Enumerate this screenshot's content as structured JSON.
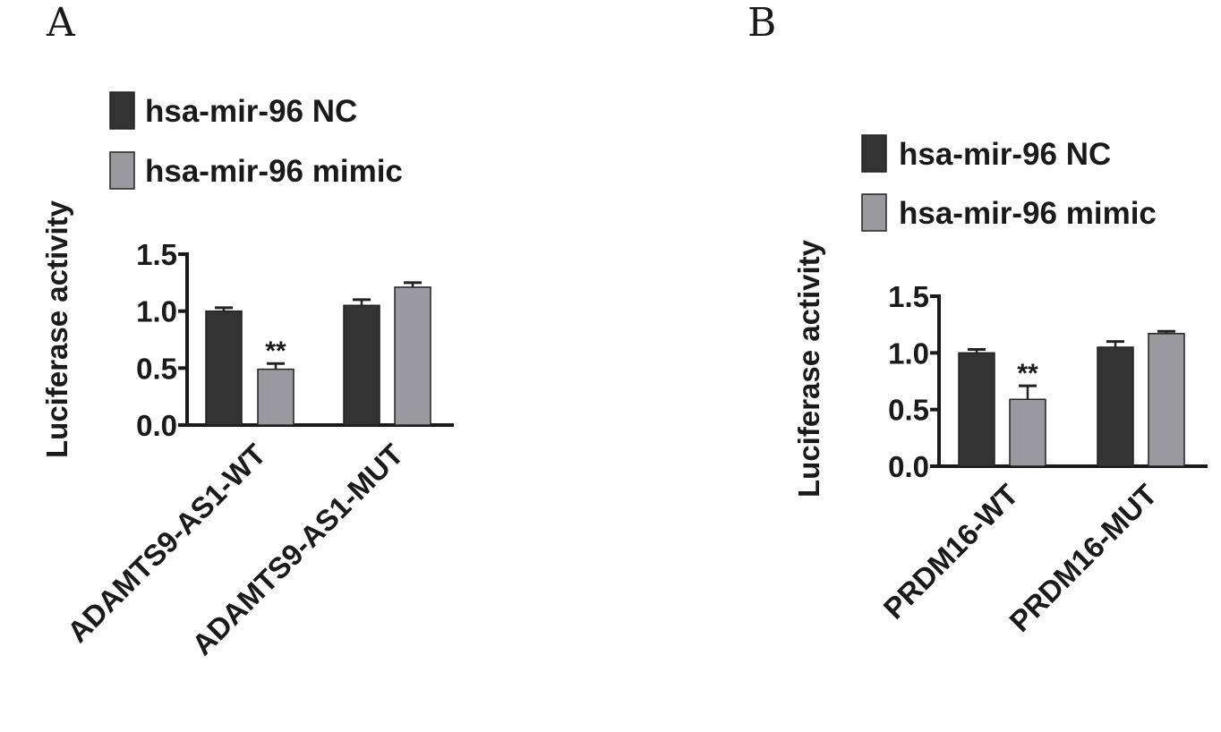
{
  "chart_data": [
    {
      "type": "bar",
      "panel": "A",
      "ylabel": "Luciferase activity",
      "ylim": [
        0,
        1.5
      ],
      "yticks": [
        "0.0",
        "0.5",
        "1.0",
        "1.5"
      ],
      "categories": [
        "ADAMTS9-AS1-WT",
        "ADAMTS9-AS1-MUT"
      ],
      "series": [
        {
          "name": "hsa-mir-96 NC",
          "color": "#333333",
          "values": [
            1.0,
            1.05
          ],
          "errors": [
            0.03,
            0.05
          ]
        },
        {
          "name": "hsa-mir-96 mimic",
          "color": "#9a9a9e",
          "values": [
            0.49,
            1.21
          ],
          "errors": [
            0.05,
            0.04
          ]
        }
      ],
      "annotations": [
        {
          "text": "**",
          "category": 0,
          "series": 1
        }
      ],
      "legend": "top"
    },
    {
      "type": "bar",
      "panel": "B",
      "ylabel": "Luciferase activity",
      "ylim": [
        0,
        1.5
      ],
      "yticks": [
        "0.0",
        "0.5",
        "1.0",
        "1.5"
      ],
      "categories": [
        "PRDM16-WT",
        "PRDM16-MUT"
      ],
      "series": [
        {
          "name": "hsa-mir-96 NC",
          "color": "#333333",
          "values": [
            1.0,
            1.05
          ],
          "errors": [
            0.03,
            0.05
          ]
        },
        {
          "name": "hsa-mir-96 mimic",
          "color": "#9a9a9e",
          "values": [
            0.59,
            1.17
          ],
          "errors": [
            0.12,
            0.02
          ]
        }
      ],
      "annotations": [
        {
          "text": "**",
          "category": 0,
          "series": 1
        }
      ],
      "legend": "top"
    }
  ]
}
